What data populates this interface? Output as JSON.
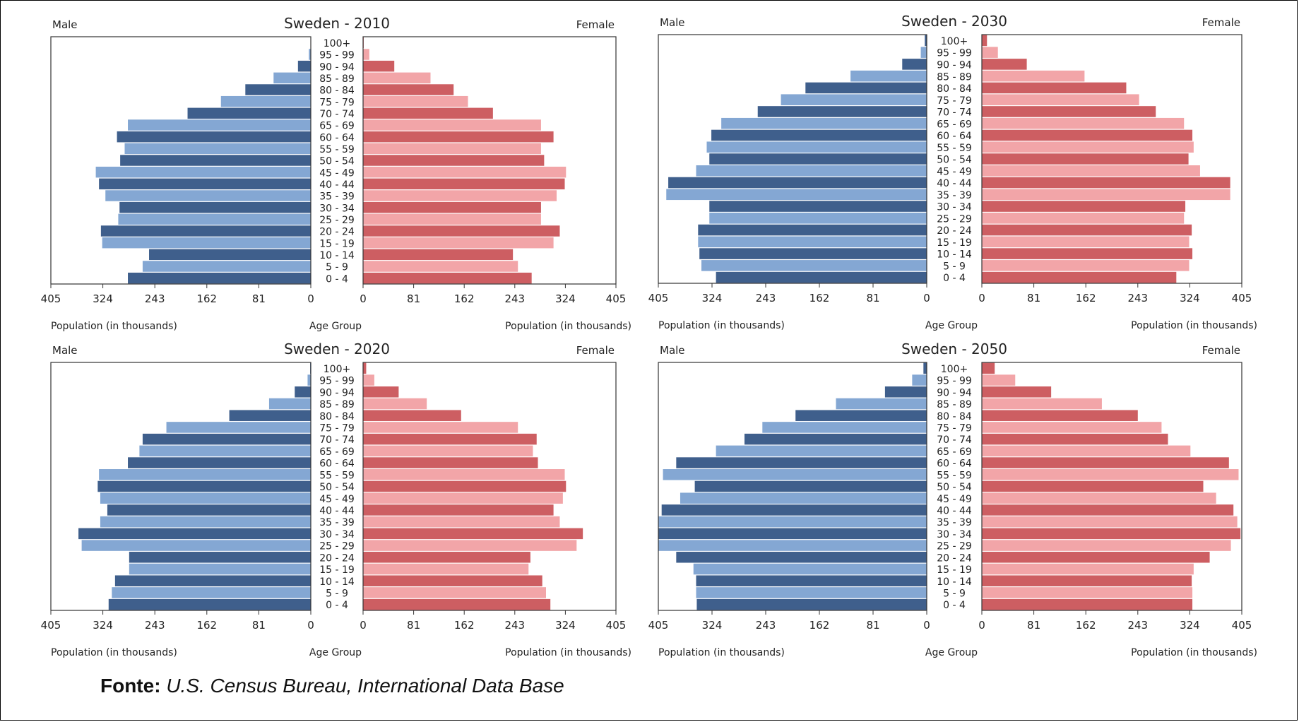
{
  "source": {
    "label": "Fonte:",
    "text": "U.S. Census Bureau, International Data Base"
  },
  "colors": {
    "male_dark": "#3f5f8c",
    "male_light": "#84a7d3",
    "female_dark": "#cd5e62",
    "female_light": "#f2a5a8"
  },
  "chart_data": [
    {
      "type": "bar",
      "title": "Sweden - 2010",
      "left_label": "Male",
      "right_label": "Female",
      "xlabel_left": "Population (in thousands)",
      "xlabel_center": "Age Group",
      "xlabel_right": "Population (in thousands)",
      "xlim": [
        0,
        405
      ],
      "ticks": [
        405,
        324,
        243,
        162,
        81,
        0
      ],
      "categories": [
        "0 - 4",
        "5 - 9",
        "10 - 14",
        "15 - 19",
        "20 - 24",
        "25 - 29",
        "30 - 34",
        "35 - 39",
        "40 - 44",
        "45 - 49",
        "50 - 54",
        "55 - 59",
        "60 - 64",
        "65 - 69",
        "70 - 74",
        "75 - 79",
        "80 - 84",
        "85 - 89",
        "90 - 94",
        "95 - 99",
        "100+"
      ],
      "series": [
        {
          "name": "Male",
          "values": [
            285,
            262,
            252,
            325,
            327,
            300,
            298,
            320,
            330,
            335,
            297,
            290,
            302,
            285,
            192,
            140,
            102,
            58,
            20,
            3,
            0
          ]
        },
        {
          "name": "Female",
          "values": [
            270,
            248,
            240,
            305,
            315,
            285,
            285,
            310,
            323,
            325,
            290,
            285,
            305,
            285,
            208,
            168,
            145,
            108,
            50,
            10,
            1
          ]
        }
      ]
    },
    {
      "type": "bar",
      "title": "Sweden - 2030",
      "left_label": "Male",
      "right_label": "Female",
      "xlabel_left": "Population (in thousands)",
      "xlabel_center": "Age Group",
      "xlabel_right": "Population (in thousands)",
      "xlim": [
        0,
        405
      ],
      "ticks": [
        405,
        324,
        243,
        162,
        81,
        0
      ],
      "categories": [
        "0 - 4",
        "5 - 9",
        "10 - 14",
        "15 - 19",
        "20 - 24",
        "25 - 29",
        "30 - 34",
        "35 - 39",
        "40 - 44",
        "45 - 49",
        "50 - 54",
        "55 - 59",
        "60 - 64",
        "65 - 69",
        "70 - 74",
        "75 - 79",
        "80 - 84",
        "85 - 89",
        "90 - 94",
        "95 - 99",
        "100+"
      ],
      "series": [
        {
          "name": "Male",
          "values": [
            318,
            340,
            343,
            345,
            345,
            328,
            328,
            393,
            390,
            348,
            328,
            332,
            325,
            310,
            255,
            220,
            183,
            115,
            37,
            9,
            3
          ]
        },
        {
          "name": "Female",
          "values": [
            303,
            323,
            328,
            323,
            327,
            315,
            317,
            387,
            387,
            340,
            322,
            330,
            328,
            315,
            271,
            245,
            225,
            160,
            70,
            25,
            8
          ]
        }
      ]
    },
    {
      "type": "bar",
      "title": "Sweden - 2020",
      "left_label": "Male",
      "right_label": "Female",
      "xlabel_left": "Population (in thousands)",
      "xlabel_center": "Age Group",
      "xlabel_right": "Population (in thousands)",
      "xlim": [
        0,
        405
      ],
      "ticks": [
        405,
        324,
        243,
        162,
        81,
        0
      ],
      "categories": [
        "0 - 4",
        "5 - 9",
        "10 - 14",
        "15 - 19",
        "20 - 24",
        "25 - 29",
        "30 - 34",
        "35 - 39",
        "40 - 44",
        "45 - 49",
        "50 - 54",
        "55 - 59",
        "60 - 64",
        "65 - 69",
        "70 - 74",
        "75 - 79",
        "80 - 84",
        "85 - 89",
        "90 - 94",
        "95 - 99",
        "100+"
      ],
      "series": [
        {
          "name": "Male",
          "values": [
            315,
            310,
            305,
            283,
            283,
            357,
            362,
            328,
            317,
            328,
            332,
            330,
            285,
            267,
            262,
            225,
            127,
            65,
            25,
            5,
            1
          ]
        },
        {
          "name": "Female",
          "values": [
            300,
            293,
            287,
            265,
            268,
            342,
            352,
            315,
            305,
            320,
            325,
            323,
            280,
            272,
            278,
            248,
            157,
            102,
            57,
            18,
            5
          ]
        }
      ]
    },
    {
      "type": "bar",
      "title": "Sweden - 2050",
      "left_label": "Male",
      "right_label": "Female",
      "xlabel_left": "Population (in thousands)",
      "xlabel_center": "Age Group",
      "xlabel_right": "Population (in thousands)",
      "xlim": [
        0,
        405
      ],
      "ticks": [
        405,
        324,
        243,
        162,
        81,
        0
      ],
      "categories": [
        "0 - 4",
        "5 - 9",
        "10 - 14",
        "15 - 19",
        "20 - 24",
        "25 - 29",
        "30 - 34",
        "35 - 39",
        "40 - 44",
        "45 - 49",
        "50 - 54",
        "55 - 59",
        "60 - 64",
        "65 - 69",
        "70 - 74",
        "75 - 79",
        "80 - 84",
        "85 - 89",
        "90 - 94",
        "95 - 99",
        "100+"
      ],
      "series": [
        {
          "name": "Male",
          "values": [
            347,
            348,
            348,
            352,
            378,
            405,
            418,
            412,
            400,
            372,
            350,
            398,
            378,
            318,
            275,
            248,
            198,
            137,
            63,
            22,
            5
          ]
        },
        {
          "name": "Female",
          "values": [
            328,
            328,
            327,
            330,
            355,
            388,
            403,
            398,
            392,
            365,
            345,
            400,
            385,
            325,
            290,
            280,
            243,
            187,
            108,
            52,
            20
          ]
        }
      ]
    }
  ]
}
